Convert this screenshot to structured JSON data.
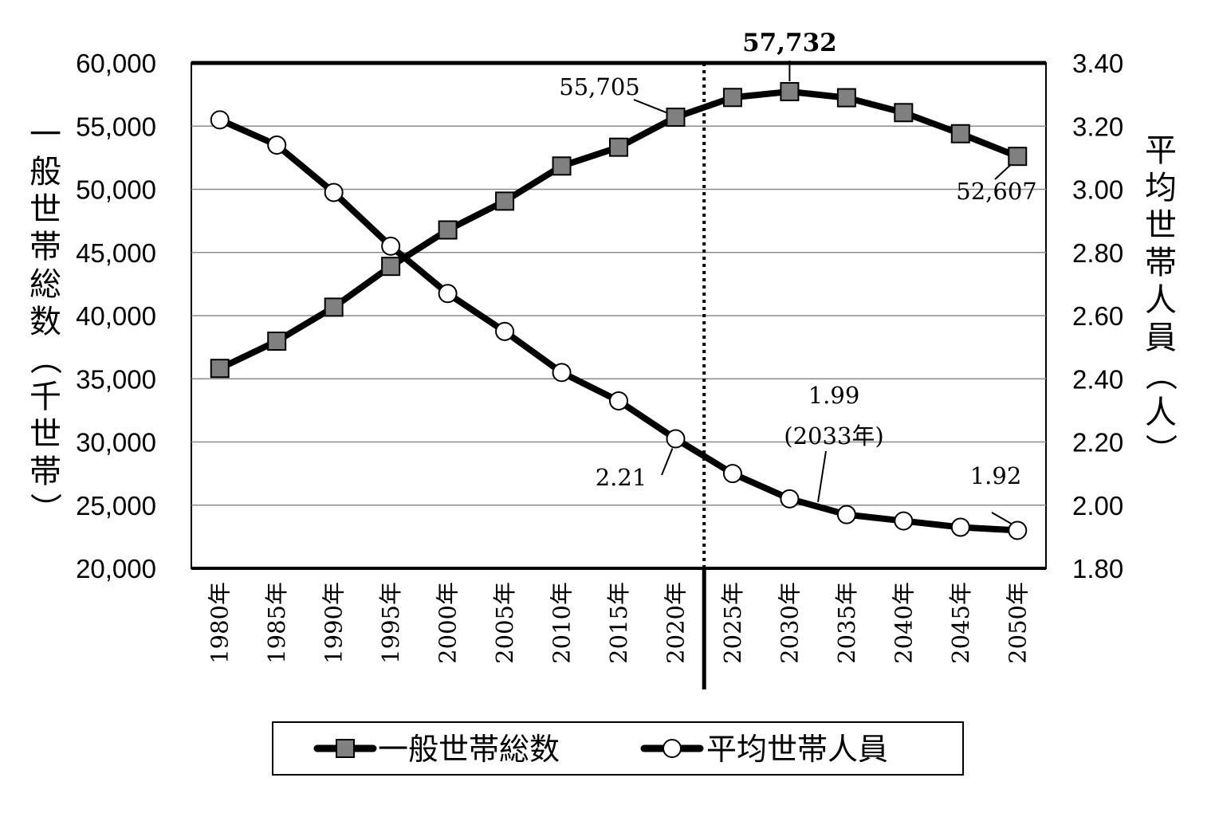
{
  "chart_data": {
    "type": "line",
    "x": [
      "1980年",
      "1985年",
      "1990年",
      "1995年",
      "2000年",
      "2005年",
      "2010年",
      "2015年",
      "2020年",
      "2025年",
      "2030年",
      "2035年",
      "2040年",
      "2045年",
      "2050年"
    ],
    "series": [
      {
        "name": "一般世帯総数",
        "axis": "left",
        "marker": "square",
        "values": [
          35824,
          37980,
          40670,
          43900,
          46782,
          49063,
          51842,
          53332,
          55705,
          57270,
          57732,
          57250,
          56070,
          54400,
          52607
        ]
      },
      {
        "name": "平均世帯人員",
        "axis": "right",
        "marker": "circle",
        "values": [
          3.22,
          3.14,
          2.99,
          2.82,
          2.67,
          2.55,
          2.42,
          2.33,
          2.21,
          2.1,
          2.02,
          1.97,
          1.95,
          1.93,
          1.92
        ]
      }
    ],
    "y_left": {
      "label": "一般世帯総数（千世帯）",
      "ylim": [
        20000,
        60000
      ],
      "ticks": [
        "20,000",
        "25,000",
        "30,000",
        "35,000",
        "40,000",
        "45,000",
        "50,000",
        "55,000",
        "60,000"
      ]
    },
    "y_right": {
      "label": "平均世帯人員（人）",
      "ylim": [
        1.8,
        3.4
      ],
      "ticks": [
        "1.80",
        "2.00",
        "2.20",
        "2.40",
        "2.60",
        "2.80",
        "3.00",
        "3.20",
        "3.40"
      ]
    },
    "grid": true,
    "legend": "bottom",
    "annotations": [
      {
        "text": "55,705",
        "series": 0,
        "index": 8
      },
      {
        "text": "57,732",
        "series": 0,
        "index": 10,
        "bold": true
      },
      {
        "text": "52,607",
        "series": 0,
        "index": 14
      },
      {
        "text": "2.21",
        "series": 1,
        "index": 8
      },
      {
        "text": "1.99",
        "series": 1,
        "index": 10
      },
      {
        "text": "(2033年)",
        "series": 1,
        "index": 10
      },
      {
        "text": "1.92",
        "series": 1,
        "index": 14
      }
    ]
  }
}
